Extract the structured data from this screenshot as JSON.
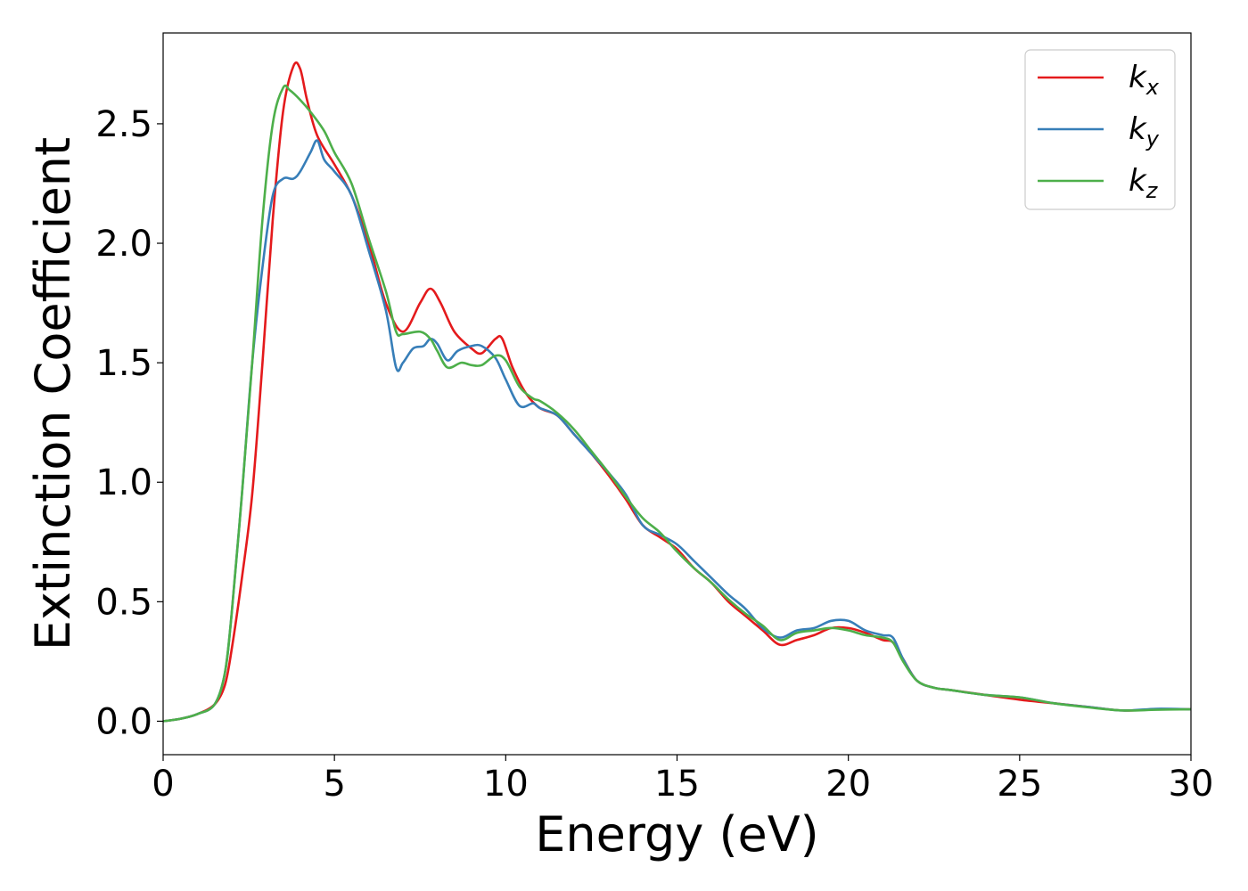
{
  "chart_data": {
    "type": "line",
    "xlabel": "Energy (eV)",
    "ylabel": "Extinction Coefficient",
    "xlim": [
      0,
      30
    ],
    "ylim": [
      -0.14,
      2.88
    ],
    "x_ticks": [
      0,
      5,
      10,
      15,
      20,
      25,
      30
    ],
    "y_ticks": [
      0.0,
      0.5,
      1.0,
      1.5,
      2.0,
      2.5
    ],
    "x_tick_labels": [
      "0",
      "5",
      "10",
      "15",
      "20",
      "25",
      "30"
    ],
    "y_tick_labels": [
      "0.0",
      "0.5",
      "1.0",
      "1.5",
      "2.0",
      "2.5"
    ],
    "grid": false,
    "legend_position": "top-right",
    "series": [
      {
        "name": "k_x",
        "label_base": "k",
        "label_sub": "x",
        "color": "#e41a1c",
        "points": [
          [
            0,
            0
          ],
          [
            0.5,
            0.01
          ],
          [
            1,
            0.03
          ],
          [
            1.5,
            0.07
          ],
          [
            1.8,
            0.15
          ],
          [
            2.0,
            0.3
          ],
          [
            2.3,
            0.6
          ],
          [
            2.6,
            0.95
          ],
          [
            2.9,
            1.5
          ],
          [
            3.2,
            2.1
          ],
          [
            3.5,
            2.55
          ],
          [
            3.8,
            2.74
          ],
          [
            4.0,
            2.73
          ],
          [
            4.2,
            2.6
          ],
          [
            4.5,
            2.45
          ],
          [
            5.0,
            2.33
          ],
          [
            5.5,
            2.2
          ],
          [
            6.0,
            2.0
          ],
          [
            6.5,
            1.75
          ],
          [
            7.0,
            1.63
          ],
          [
            7.5,
            1.75
          ],
          [
            7.8,
            1.81
          ],
          [
            8.1,
            1.75
          ],
          [
            8.5,
            1.63
          ],
          [
            9.0,
            1.56
          ],
          [
            9.3,
            1.54
          ],
          [
            9.7,
            1.6
          ],
          [
            9.9,
            1.6
          ],
          [
            10.2,
            1.48
          ],
          [
            10.6,
            1.37
          ],
          [
            11.0,
            1.31
          ],
          [
            11.5,
            1.28
          ],
          [
            12.0,
            1.2
          ],
          [
            12.5,
            1.12
          ],
          [
            13.0,
            1.03
          ],
          [
            13.5,
            0.93
          ],
          [
            14.0,
            0.82
          ],
          [
            14.5,
            0.77
          ],
          [
            15.0,
            0.72
          ],
          [
            15.5,
            0.64
          ],
          [
            16.0,
            0.58
          ],
          [
            16.5,
            0.5
          ],
          [
            17.0,
            0.44
          ],
          [
            17.5,
            0.38
          ],
          [
            18.0,
            0.32
          ],
          [
            18.5,
            0.34
          ],
          [
            19.0,
            0.36
          ],
          [
            19.5,
            0.39
          ],
          [
            20.0,
            0.39
          ],
          [
            20.5,
            0.37
          ],
          [
            21.0,
            0.34
          ],
          [
            21.3,
            0.33
          ],
          [
            21.6,
            0.26
          ],
          [
            22.0,
            0.17
          ],
          [
            22.5,
            0.14
          ],
          [
            23.0,
            0.13
          ],
          [
            24.0,
            0.11
          ],
          [
            25.0,
            0.09
          ],
          [
            26.0,
            0.075
          ],
          [
            27.0,
            0.06
          ],
          [
            28.0,
            0.045
          ],
          [
            29.0,
            0.05
          ],
          [
            30.0,
            0.05
          ]
        ]
      },
      {
        "name": "k_y",
        "label_base": "k",
        "label_sub": "y",
        "color": "#377eb8",
        "points": [
          [
            0,
            0
          ],
          [
            0.5,
            0.01
          ],
          [
            1,
            0.03
          ],
          [
            1.5,
            0.07
          ],
          [
            1.8,
            0.2
          ],
          [
            2.0,
            0.45
          ],
          [
            2.3,
            0.95
          ],
          [
            2.6,
            1.5
          ],
          [
            2.9,
            1.9
          ],
          [
            3.2,
            2.2
          ],
          [
            3.5,
            2.27
          ],
          [
            3.8,
            2.27
          ],
          [
            4.0,
            2.3
          ],
          [
            4.3,
            2.38
          ],
          [
            4.5,
            2.43
          ],
          [
            4.7,
            2.35
          ],
          [
            5.0,
            2.3
          ],
          [
            5.5,
            2.2
          ],
          [
            6.0,
            1.97
          ],
          [
            6.5,
            1.72
          ],
          [
            6.8,
            1.48
          ],
          [
            7.0,
            1.5
          ],
          [
            7.3,
            1.56
          ],
          [
            7.6,
            1.57
          ],
          [
            7.8,
            1.6
          ],
          [
            8.0,
            1.58
          ],
          [
            8.3,
            1.51
          ],
          [
            8.6,
            1.55
          ],
          [
            9.0,
            1.57
          ],
          [
            9.3,
            1.57
          ],
          [
            9.7,
            1.52
          ],
          [
            10.0,
            1.43
          ],
          [
            10.4,
            1.32
          ],
          [
            10.8,
            1.33
          ],
          [
            11.0,
            1.31
          ],
          [
            11.5,
            1.28
          ],
          [
            12.0,
            1.2
          ],
          [
            12.5,
            1.12
          ],
          [
            13.0,
            1.04
          ],
          [
            13.5,
            0.95
          ],
          [
            14.0,
            0.82
          ],
          [
            14.5,
            0.78
          ],
          [
            15.0,
            0.74
          ],
          [
            15.5,
            0.67
          ],
          [
            16.0,
            0.6
          ],
          [
            16.5,
            0.53
          ],
          [
            17.0,
            0.47
          ],
          [
            17.5,
            0.39
          ],
          [
            18.0,
            0.35
          ],
          [
            18.5,
            0.38
          ],
          [
            19.0,
            0.39
          ],
          [
            19.5,
            0.42
          ],
          [
            20.0,
            0.42
          ],
          [
            20.5,
            0.38
          ],
          [
            21.0,
            0.36
          ],
          [
            21.3,
            0.35
          ],
          [
            21.6,
            0.26
          ],
          [
            22.0,
            0.17
          ],
          [
            22.5,
            0.14
          ],
          [
            23.0,
            0.13
          ],
          [
            24.0,
            0.11
          ],
          [
            25.0,
            0.1
          ],
          [
            26.0,
            0.075
          ],
          [
            27.0,
            0.06
          ],
          [
            28.0,
            0.045
          ],
          [
            29.0,
            0.052
          ],
          [
            30.0,
            0.05
          ]
        ]
      },
      {
        "name": "k_z",
        "label_base": "k",
        "label_sub": "z",
        "color": "#4daf4a",
        "points": [
          [
            0,
            0
          ],
          [
            0.5,
            0.01
          ],
          [
            1,
            0.03
          ],
          [
            1.5,
            0.07
          ],
          [
            1.8,
            0.2
          ],
          [
            2.0,
            0.45
          ],
          [
            2.3,
            0.95
          ],
          [
            2.6,
            1.5
          ],
          [
            2.9,
            2.1
          ],
          [
            3.2,
            2.5
          ],
          [
            3.5,
            2.65
          ],
          [
            3.7,
            2.64
          ],
          [
            4.0,
            2.6
          ],
          [
            4.3,
            2.55
          ],
          [
            4.7,
            2.47
          ],
          [
            5.0,
            2.38
          ],
          [
            5.5,
            2.25
          ],
          [
            6.0,
            2.02
          ],
          [
            6.5,
            1.8
          ],
          [
            6.8,
            1.63
          ],
          [
            7.0,
            1.62
          ],
          [
            7.5,
            1.63
          ],
          [
            7.8,
            1.6
          ],
          [
            8.0,
            1.55
          ],
          [
            8.3,
            1.48
          ],
          [
            8.7,
            1.5
          ],
          [
            9.0,
            1.49
          ],
          [
            9.3,
            1.49
          ],
          [
            9.7,
            1.53
          ],
          [
            10.0,
            1.51
          ],
          [
            10.4,
            1.4
          ],
          [
            10.8,
            1.35
          ],
          [
            11.0,
            1.34
          ],
          [
            11.5,
            1.29
          ],
          [
            12.0,
            1.22
          ],
          [
            12.5,
            1.13
          ],
          [
            13.0,
            1.04
          ],
          [
            13.5,
            0.94
          ],
          [
            14.0,
            0.85
          ],
          [
            14.5,
            0.79
          ],
          [
            15.0,
            0.71
          ],
          [
            15.5,
            0.64
          ],
          [
            16.0,
            0.58
          ],
          [
            16.5,
            0.51
          ],
          [
            17.0,
            0.45
          ],
          [
            17.5,
            0.4
          ],
          [
            18.0,
            0.34
          ],
          [
            18.5,
            0.37
          ],
          [
            19.0,
            0.38
          ],
          [
            19.5,
            0.39
          ],
          [
            20.0,
            0.38
          ],
          [
            20.5,
            0.36
          ],
          [
            21.0,
            0.35
          ],
          [
            21.3,
            0.33
          ],
          [
            21.6,
            0.25
          ],
          [
            22.0,
            0.17
          ],
          [
            22.5,
            0.14
          ],
          [
            23.0,
            0.13
          ],
          [
            24.0,
            0.11
          ],
          [
            25.0,
            0.1
          ],
          [
            26.0,
            0.075
          ],
          [
            27.0,
            0.058
          ],
          [
            28.0,
            0.045
          ],
          [
            29.0,
            0.048
          ],
          [
            30.0,
            0.05
          ]
        ]
      }
    ]
  }
}
